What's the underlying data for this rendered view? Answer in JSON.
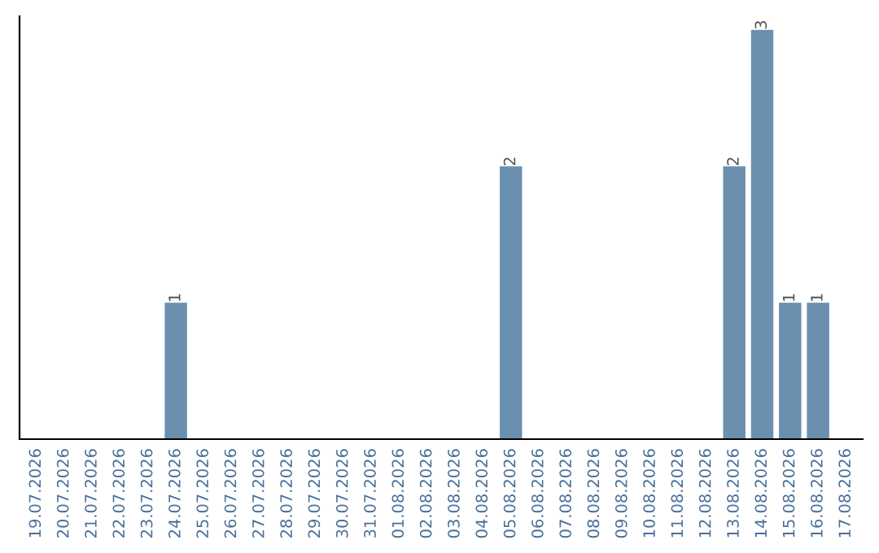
{
  "chart_data": {
    "type": "bar",
    "categories": [
      "19.07.2026",
      "20.07.2026",
      "21.07.2026",
      "22.07.2026",
      "23.07.2026",
      "24.07.2026",
      "25.07.2026",
      "26.07.2026",
      "27.07.2026",
      "28.07.2026",
      "29.07.2026",
      "30.07.2026",
      "31.07.2026",
      "01.08.2026",
      "02.08.2026",
      "03.08.2026",
      "04.08.2026",
      "05.08.2026",
      "06.08.2026",
      "07.08.2026",
      "08.08.2026",
      "09.08.2026",
      "10.08.2026",
      "11.08.2026",
      "12.08.2026",
      "13.08.2026",
      "14.08.2026",
      "15.08.2026",
      "16.08.2026",
      "17.08.2026"
    ],
    "values": [
      0,
      0,
      0,
      0,
      0,
      1,
      0,
      0,
      0,
      0,
      0,
      0,
      0,
      0,
      0,
      0,
      0,
      2,
      0,
      0,
      0,
      0,
      0,
      0,
      0,
      2,
      3,
      1,
      1,
      0
    ],
    "value_labels": [
      null,
      null,
      null,
      null,
      null,
      "1",
      null,
      null,
      null,
      null,
      null,
      null,
      null,
      null,
      null,
      null,
      null,
      "2",
      null,
      null,
      null,
      null,
      null,
      null,
      null,
      "2",
      "3",
      "1",
      "1",
      null
    ],
    "color": "#6b8fae",
    "ylim": [
      0,
      3.1
    ],
    "tick_labels": "x",
    "grid": false,
    "legend": false
  }
}
